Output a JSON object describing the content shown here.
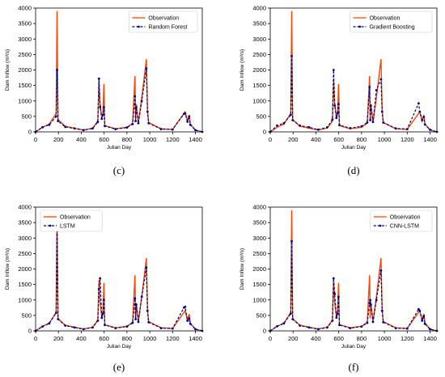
{
  "chart_data": [
    {
      "type": "line",
      "panel": "(c)",
      "xlabel": "Julian Day",
      "ylabel": "Dam Inflow (m³/s)",
      "xlim": [
        0,
        1460
      ],
      "ylim": [
        0,
        4000
      ],
      "xticks": [
        0,
        200,
        400,
        600,
        800,
        1000,
        1200,
        1400
      ],
      "yticks": [
        0,
        500,
        1000,
        1500,
        2000,
        2500,
        3000,
        3500,
        4000
      ],
      "legend_position": "top-right",
      "series": [
        {
          "name": "Observation",
          "color": "#ff4500",
          "style": "solid",
          "x": [
            0,
            60,
            120,
            180,
            188,
            196,
            260,
            340,
            420,
            500,
            545,
            555,
            565,
            580,
            590,
            598,
            606,
            700,
            800,
            850,
            870,
            876,
            882,
            900,
            930,
            970,
            980,
            990,
            1100,
            1200,
            1300,
            1310,
            1330,
            1345,
            1355,
            1400,
            1460
          ],
          "y": [
            0,
            150,
            250,
            600,
            3900,
            400,
            180,
            120,
            60,
            120,
            350,
            1650,
            900,
            450,
            600,
            1550,
            200,
            100,
            150,
            280,
            1800,
            400,
            900,
            300,
            1100,
            2350,
            700,
            300,
            100,
            80,
            600,
            650,
            350,
            550,
            250,
            60,
            0
          ]
        },
        {
          "name": "Random Forest",
          "color": "#000080",
          "style": "dashed",
          "x": [
            0,
            60,
            120,
            180,
            188,
            196,
            260,
            340,
            420,
            500,
            545,
            555,
            565,
            580,
            590,
            598,
            606,
            700,
            800,
            850,
            870,
            876,
            882,
            900,
            930,
            970,
            980,
            990,
            1100,
            1200,
            1300,
            1310,
            1330,
            1345,
            1355,
            1400,
            1460
          ],
          "y": [
            0,
            150,
            230,
            500,
            2000,
            350,
            160,
            110,
            55,
            110,
            320,
            1720,
            800,
            420,
            550,
            800,
            190,
            90,
            140,
            250,
            1150,
            350,
            800,
            280,
            1000,
            2050,
            650,
            280,
            90,
            75,
            580,
            600,
            330,
            500,
            230,
            55,
            0
          ]
        }
      ]
    },
    {
      "type": "line",
      "panel": "(d)",
      "xlabel": "Julian Day",
      "ylabel": "Dam Inflow (m³/s)",
      "xlim": [
        0,
        1460
      ],
      "ylim": [
        0,
        4000
      ],
      "xticks": [
        0,
        200,
        400,
        600,
        800,
        1000,
        1200,
        1400
      ],
      "yticks": [
        0,
        500,
        1000,
        1500,
        2000,
        2500,
        3000,
        3500,
        4000
      ],
      "legend_position": "top-right",
      "series": [
        {
          "name": "Observation",
          "color": "#ff4500",
          "style": "solid",
          "x": [
            0,
            60,
            120,
            180,
            188,
            196,
            260,
            340,
            420,
            500,
            545,
            555,
            565,
            580,
            590,
            598,
            606,
            700,
            800,
            850,
            870,
            876,
            882,
            900,
            930,
            970,
            980,
            990,
            1100,
            1200,
            1300,
            1310,
            1330,
            1345,
            1355,
            1400,
            1460
          ],
          "y": [
            0,
            150,
            250,
            600,
            3900,
            400,
            180,
            120,
            60,
            120,
            350,
            1650,
            900,
            450,
            600,
            1550,
            200,
            100,
            150,
            280,
            1800,
            400,
            900,
            300,
            1100,
            2350,
            700,
            300,
            100,
            80,
            600,
            650,
            350,
            550,
            250,
            60,
            0
          ]
        },
        {
          "name": "Gradient Boosting",
          "color": "#000080",
          "style": "dashed",
          "x": [
            0,
            60,
            120,
            180,
            188,
            196,
            260,
            340,
            420,
            500,
            545,
            555,
            565,
            580,
            590,
            598,
            606,
            700,
            800,
            850,
            870,
            876,
            882,
            900,
            930,
            970,
            980,
            990,
            1100,
            1200,
            1300,
            1310,
            1330,
            1345,
            1355,
            1400,
            1460
          ],
          "y": [
            0,
            200,
            280,
            550,
            2450,
            380,
            200,
            150,
            70,
            150,
            400,
            2000,
            850,
            450,
            600,
            900,
            220,
            120,
            180,
            300,
            1450,
            380,
            850,
            320,
            1350,
            1700,
            650,
            300,
            110,
            90,
            920,
            650,
            380,
            480,
            240,
            70,
            0
          ]
        }
      ]
    },
    {
      "type": "line",
      "panel": "(e)",
      "xlabel": "Julian Day",
      "ylabel": "Dam Inflow (m³/s)",
      "xlim": [
        0,
        1460
      ],
      "ylim": [
        0,
        4000
      ],
      "xticks": [
        0,
        200,
        400,
        600,
        800,
        1000,
        1200,
        1400
      ],
      "yticks": [
        0,
        500,
        1000,
        1500,
        2000,
        2500,
        3000,
        3500,
        4000
      ],
      "legend_position": "top-left",
      "series": [
        {
          "name": "Observation",
          "color": "#ff4500",
          "style": "solid",
          "x": [
            0,
            60,
            120,
            180,
            188,
            196,
            260,
            340,
            420,
            500,
            545,
            555,
            565,
            580,
            590,
            598,
            606,
            700,
            800,
            850,
            870,
            876,
            882,
            900,
            930,
            970,
            980,
            990,
            1100,
            1200,
            1300,
            1310,
            1330,
            1345,
            1355,
            1400,
            1460
          ],
          "y": [
            0,
            150,
            250,
            600,
            3900,
            400,
            180,
            120,
            60,
            120,
            350,
            1650,
            900,
            450,
            600,
            1550,
            200,
            100,
            150,
            280,
            1800,
            400,
            900,
            300,
            1100,
            2350,
            700,
            300,
            100,
            80,
            600,
            650,
            350,
            550,
            250,
            60,
            0
          ]
        },
        {
          "name": "LSTM",
          "color": "#000080",
          "style": "dashed",
          "x": [
            0,
            60,
            120,
            180,
            188,
            196,
            260,
            340,
            420,
            500,
            545,
            555,
            565,
            580,
            590,
            598,
            606,
            700,
            800,
            850,
            870,
            876,
            882,
            900,
            930,
            970,
            980,
            990,
            1100,
            1200,
            1300,
            1310,
            1330,
            1345,
            1355,
            1400,
            1460
          ],
          "y": [
            0,
            140,
            240,
            580,
            3300,
            380,
            170,
            110,
            55,
            110,
            330,
            1350,
            1700,
            420,
            560,
            1000,
            190,
            90,
            140,
            260,
            1050,
            380,
            850,
            290,
            1100,
            2050,
            650,
            280,
            90,
            75,
            750,
            780,
            330,
            400,
            230,
            55,
            0
          ]
        }
      ]
    },
    {
      "type": "line",
      "panel": "(f)",
      "xlabel": "Julian Day",
      "ylabel": "Dam Inflow (m³/s)",
      "xlim": [
        0,
        1460
      ],
      "ylim": [
        0,
        4000
      ],
      "xticks": [
        0,
        200,
        400,
        600,
        800,
        1000,
        1200,
        1400
      ],
      "yticks": [
        0,
        500,
        1000,
        1500,
        2000,
        2500,
        3000,
        3500,
        4000
      ],
      "legend_position": "top-right",
      "series": [
        {
          "name": "Observation",
          "color": "#ff4500",
          "style": "solid",
          "x": [
            0,
            60,
            120,
            180,
            188,
            196,
            260,
            340,
            420,
            500,
            545,
            555,
            565,
            580,
            590,
            598,
            606,
            700,
            800,
            850,
            870,
            876,
            882,
            900,
            930,
            970,
            980,
            990,
            1100,
            1200,
            1300,
            1310,
            1330,
            1345,
            1355,
            1400,
            1460
          ],
          "y": [
            0,
            150,
            250,
            600,
            3900,
            400,
            180,
            120,
            60,
            120,
            350,
            1650,
            900,
            450,
            600,
            1550,
            200,
            100,
            150,
            280,
            1800,
            400,
            900,
            300,
            1100,
            2350,
            700,
            300,
            100,
            80,
            600,
            650,
            350,
            550,
            250,
            60,
            0
          ]
        },
        {
          "name": "CNN-LSTM",
          "color": "#000080",
          "style": "dashed",
          "x": [
            0,
            60,
            120,
            180,
            188,
            196,
            260,
            340,
            420,
            500,
            545,
            555,
            565,
            580,
            590,
            598,
            606,
            700,
            800,
            850,
            870,
            876,
            882,
            900,
            930,
            970,
            980,
            990,
            1100,
            1200,
            1300,
            1310,
            1330,
            1345,
            1355,
            1400,
            1460
          ],
          "y": [
            0,
            150,
            240,
            560,
            2900,
            380,
            170,
            110,
            55,
            110,
            330,
            1700,
            1200,
            430,
            560,
            1100,
            190,
            90,
            140,
            260,
            900,
            1000,
            850,
            290,
            1000,
            1950,
            650,
            280,
            90,
            75,
            700,
            650,
            330,
            480,
            230,
            55,
            0
          ]
        }
      ]
    }
  ]
}
